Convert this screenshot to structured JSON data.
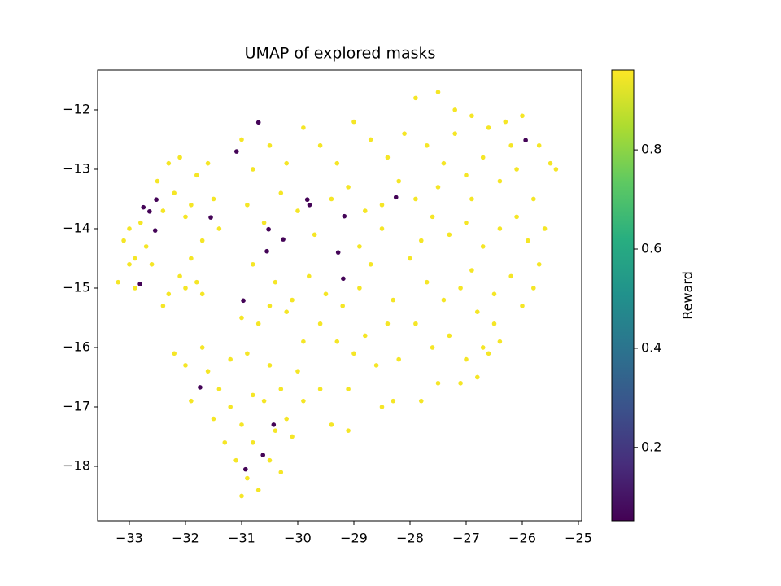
{
  "chart_data": {
    "type": "scatter",
    "title": "UMAP of explored masks",
    "colorbar_label": "Reward",
    "xlim": [
      -33.565,
      -24.942
    ],
    "ylim": [
      -18.918,
      -11.329
    ],
    "clim": [
      0.052,
      0.961
    ],
    "xticks": [
      {
        "value": -33,
        "label": "−33"
      },
      {
        "value": -32,
        "label": "−32"
      },
      {
        "value": -31,
        "label": "−31"
      },
      {
        "value": -30,
        "label": "−30"
      },
      {
        "value": -29,
        "label": "−29"
      },
      {
        "value": -28,
        "label": "−28"
      },
      {
        "value": -27,
        "label": "−27"
      },
      {
        "value": -26,
        "label": "−26"
      },
      {
        "value": -25,
        "label": "−25"
      }
    ],
    "yticks": [
      {
        "value": -12,
        "label": "−12"
      },
      {
        "value": -13,
        "label": "−13"
      },
      {
        "value": -14,
        "label": "−14"
      },
      {
        "value": -15,
        "label": "−15"
      },
      {
        "value": -16,
        "label": "−16"
      },
      {
        "value": -17,
        "label": "−17"
      },
      {
        "value": -18,
        "label": "−18"
      }
    ],
    "cticks": [
      0.2,
      0.4,
      0.6,
      0.8
    ],
    "colormap": "viridis",
    "x": [
      -33.1,
      -33.0,
      -32.9,
      -33.2,
      -32.7,
      -32.5,
      -32.3,
      -32.2,
      -32.0,
      -31.8,
      -32.4,
      -32.3,
      -32.1,
      -31.9,
      -31.7,
      -32.6,
      -32.8,
      -31.6,
      -31.5,
      -31.4,
      -32.0,
      -31.7,
      -32.2,
      -32.0,
      -32.4,
      -33.0,
      -32.9,
      -31.9,
      -32.1,
      -31.8,
      -31.9,
      -31.6,
      -31.4,
      -31.2,
      -31.0,
      -30.8,
      -31.1,
      -30.9,
      -30.7,
      -31.0,
      -30.5,
      -30.3,
      -30.4,
      -30.2,
      -30.6,
      -30.8,
      -30.3,
      -30.1,
      -31.3,
      -31.5,
      -31.7,
      -31.2,
      -30.9,
      -30.5,
      -30.0,
      -29.9,
      -30.7,
      -31.0,
      -29.6,
      -29.4,
      -31.0,
      -30.8,
      -30.5,
      -30.2,
      -29.9,
      -29.6,
      -29.3,
      -29.0,
      -28.7,
      -28.4,
      -30.9,
      -30.6,
      -30.3,
      -30.0,
      -29.7,
      -29.4,
      -29.1,
      -28.8,
      -28.5,
      -28.9,
      -30.8,
      -30.4,
      -30.1,
      -29.8,
      -29.5,
      -29.2,
      -28.9,
      -29.6,
      -29.3,
      -28.7,
      -30.2,
      -30.5,
      -29.9,
      -29.0,
      -28.8,
      -28.6,
      -29.1,
      -28.3,
      -28.5,
      -29.1,
      -27.9,
      -27.5,
      -27.2,
      -26.9,
      -26.6,
      -26.3,
      -26.0,
      -25.7,
      -25.5,
      -25.4,
      -28.1,
      -27.7,
      -27.4,
      -27.0,
      -26.7,
      -26.4,
      -26.1,
      -25.8,
      -25.6,
      -25.7,
      -28.2,
      -27.9,
      -27.6,
      -27.3,
      -27.0,
      -26.7,
      -26.4,
      -26.1,
      -25.9,
      -25.8,
      -28.0,
      -27.7,
      -27.4,
      -27.1,
      -26.8,
      -26.5,
      -26.2,
      -26.0,
      -28.3,
      -27.9,
      -27.6,
      -27.3,
      -27.0,
      -26.7,
      -26.5,
      -26.8,
      -27.1,
      -27.5,
      -27.8,
      -26.6,
      -28.5,
      -27.2,
      -26.9,
      -26.2,
      -27.8,
      -28.4,
      -28.2,
      -26.4,
      -26.9,
      -27.5,
      -32.52,
      -32.75,
      -32.64,
      -32.54,
      -32.81,
      -31.55,
      -31.09,
      -30.7,
      -30.52,
      -30.26,
      -30.55,
      -29.83,
      -29.79,
      -29.17,
      -29.28,
      -29.19,
      -28.25,
      -30.97,
      -31.74,
      -30.43,
      -30.62,
      -30.93,
      -25.94
    ],
    "values": [
      -14.2,
      -14.6,
      -15.0,
      -14.9,
      -14.3,
      -13.2,
      -12.9,
      -13.4,
      -13.8,
      -13.1,
      -15.3,
      -15.1,
      -14.8,
      -14.5,
      -14.2,
      -14.6,
      -13.9,
      -12.9,
      -13.5,
      -14.0,
      -15.0,
      -15.1,
      -16.1,
      -16.3,
      -13.7,
      -14.0,
      -14.5,
      -13.6,
      -12.8,
      -14.9,
      -16.9,
      -16.4,
      -16.7,
      -17.0,
      -17.3,
      -17.6,
      -17.9,
      -18.2,
      -18.4,
      -18.5,
      -17.9,
      -18.1,
      -17.4,
      -17.2,
      -16.9,
      -16.8,
      -16.7,
      -17.5,
      -17.6,
      -17.2,
      -16.0,
      -16.2,
      -16.1,
      -16.3,
      -16.4,
      -16.9,
      -15.6,
      -15.5,
      -16.7,
      -17.3,
      -12.5,
      -13.0,
      -12.6,
      -12.9,
      -12.3,
      -12.6,
      -12.9,
      -12.2,
      -12.5,
      -12.8,
      -13.6,
      -13.9,
      -13.4,
      -13.7,
      -14.1,
      -13.5,
      -13.3,
      -13.7,
      -14.0,
      -14.3,
      -14.6,
      -14.9,
      -15.2,
      -14.8,
      -15.1,
      -15.3,
      -15.0,
      -15.6,
      -15.9,
      -14.6,
      -15.4,
      -15.3,
      -15.9,
      -16.1,
      -15.8,
      -16.3,
      -16.7,
      -16.9,
      -17.0,
      -17.4,
      -11.8,
      -11.7,
      -12.0,
      -12.1,
      -12.3,
      -12.2,
      -12.1,
      -12.6,
      -12.9,
      -13.0,
      -12.4,
      -12.6,
      -12.9,
      -13.1,
      -12.8,
      -13.2,
      -13.0,
      -13.5,
      -14.0,
      -14.6,
      -13.2,
      -13.5,
      -13.8,
      -14.1,
      -13.9,
      -14.3,
      -14.0,
      -13.8,
      -14.2,
      -15.0,
      -14.5,
      -14.9,
      -15.2,
      -15.0,
      -15.4,
      -15.1,
      -14.8,
      -15.3,
      -15.2,
      -15.6,
      -16.0,
      -15.8,
      -16.2,
      -16.0,
      -15.6,
      -16.5,
      -16.6,
      -16.6,
      -16.9,
      -16.1,
      -13.6,
      -12.4,
      -13.5,
      -12.6,
      -14.2,
      -15.6,
      -16.2,
      -15.9,
      -14.7,
      -13.3,
      -13.51,
      -13.64,
      -13.71,
      -14.03,
      -14.93,
      -13.81,
      -12.7,
      -12.21,
      -14.01,
      -14.18,
      -14.38,
      -13.51,
      -13.6,
      -13.79,
      -14.4,
      -14.84,
      -13.47,
      -15.21,
      -16.67,
      -17.3,
      -17.81,
      -18.05,
      -12.51
    ],
    "reward": [
      0.95,
      0.95,
      0.95,
      0.95,
      0.95,
      0.95,
      0.95,
      0.95,
      0.95,
      0.95,
      0.95,
      0.95,
      0.95,
      0.95,
      0.95,
      0.95,
      0.95,
      0.95,
      0.95,
      0.95,
      0.95,
      0.95,
      0.95,
      0.95,
      0.95,
      0.95,
      0.95,
      0.95,
      0.95,
      0.95,
      0.95,
      0.95,
      0.95,
      0.95,
      0.95,
      0.95,
      0.95,
      0.95,
      0.95,
      0.95,
      0.95,
      0.95,
      0.95,
      0.95,
      0.95,
      0.95,
      0.95,
      0.95,
      0.95,
      0.95,
      0.95,
      0.95,
      0.95,
      0.95,
      0.95,
      0.95,
      0.95,
      0.95,
      0.95,
      0.95,
      0.95,
      0.95,
      0.95,
      0.95,
      0.95,
      0.95,
      0.95,
      0.95,
      0.95,
      0.95,
      0.95,
      0.95,
      0.95,
      0.95,
      0.95,
      0.95,
      0.95,
      0.95,
      0.95,
      0.95,
      0.95,
      0.95,
      0.95,
      0.95,
      0.95,
      0.95,
      0.95,
      0.95,
      0.95,
      0.95,
      0.95,
      0.95,
      0.95,
      0.95,
      0.95,
      0.95,
      0.95,
      0.95,
      0.95,
      0.95,
      0.95,
      0.95,
      0.95,
      0.95,
      0.95,
      0.95,
      0.95,
      0.95,
      0.95,
      0.95,
      0.95,
      0.95,
      0.95,
      0.95,
      0.95,
      0.95,
      0.95,
      0.95,
      0.95,
      0.95,
      0.95,
      0.95,
      0.95,
      0.95,
      0.95,
      0.95,
      0.95,
      0.95,
      0.95,
      0.95,
      0.95,
      0.95,
      0.95,
      0.95,
      0.95,
      0.95,
      0.95,
      0.95,
      0.95,
      0.95,
      0.95,
      0.95,
      0.95,
      0.95,
      0.95,
      0.95,
      0.95,
      0.95,
      0.95,
      0.95,
      0.95,
      0.95,
      0.95,
      0.95,
      0.95,
      0.95,
      0.95,
      0.95,
      0.95,
      0.95,
      0.06,
      0.06,
      0.06,
      0.06,
      0.06,
      0.06,
      0.06,
      0.06,
      0.06,
      0.06,
      0.06,
      0.06,
      0.06,
      0.06,
      0.06,
      0.06,
      0.06,
      0.06,
      0.06,
      0.06,
      0.06,
      0.06,
      0.06
    ]
  }
}
